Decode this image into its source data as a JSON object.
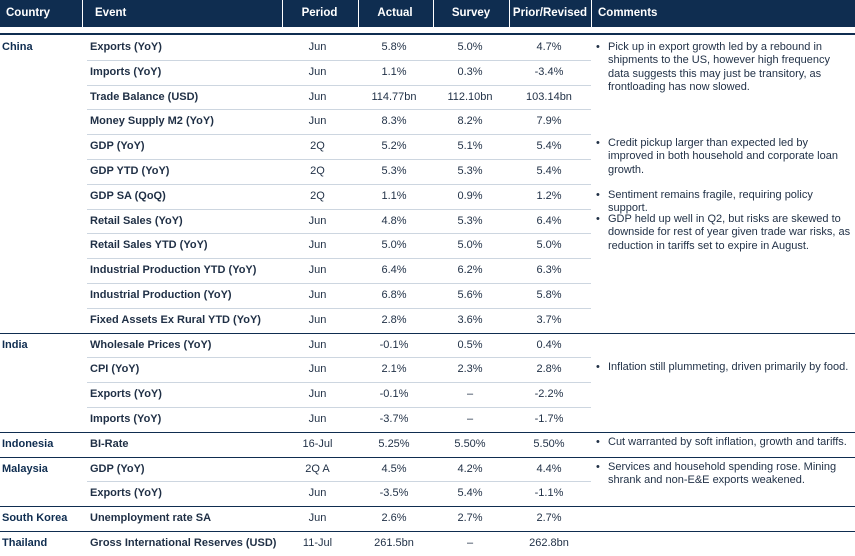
{
  "headers": {
    "country": "Country",
    "event": "Event",
    "period": "Period",
    "actual": "Actual",
    "survey": "Survey",
    "prior": "Prior/Revised",
    "comments": "Comments"
  },
  "bullet": "•",
  "rows": [
    {
      "country": "China",
      "event": "Exports (YoY)",
      "period": "Jun",
      "actual": "5.8%",
      "survey": "5.0%",
      "prior": "4.7%"
    },
    {
      "country": "",
      "event": "Imports (YoY)",
      "period": "Jun",
      "actual": "1.1%",
      "survey": "0.3%",
      "prior": "-3.4%"
    },
    {
      "country": "",
      "event": "Trade Balance (USD)",
      "period": "Jun",
      "actual": "114.77bn",
      "survey": "112.10bn",
      "prior": "103.14bn"
    },
    {
      "country": "",
      "event": "Money Supply M2 (YoY)",
      "period": "Jun",
      "actual": "8.3%",
      "survey": "8.2%",
      "prior": "7.9%"
    },
    {
      "country": "",
      "event": "GDP (YoY)",
      "period": "2Q",
      "actual": "5.2%",
      "survey": "5.1%",
      "prior": "5.4%"
    },
    {
      "country": "",
      "event": "GDP YTD (YoY)",
      "period": "2Q",
      "actual": "5.3%",
      "survey": "5.3%",
      "prior": "5.4%"
    },
    {
      "country": "",
      "event": "GDP SA (QoQ)",
      "period": "2Q",
      "actual": "1.1%",
      "survey": "0.9%",
      "prior": "1.2%"
    },
    {
      "country": "",
      "event": "Retail Sales (YoY)",
      "period": "Jun",
      "actual": "4.8%",
      "survey": "5.3%",
      "prior": "6.4%"
    },
    {
      "country": "",
      "event": "Retail Sales YTD (YoY)",
      "period": "Jun",
      "actual": "5.0%",
      "survey": "5.0%",
      "prior": "5.0%"
    },
    {
      "country": "",
      "event": "Industrial Production YTD (YoY)",
      "period": "Jun",
      "actual": "6.4%",
      "survey": "6.2%",
      "prior": "6.3%"
    },
    {
      "country": "",
      "event": "Industrial Production (YoY)",
      "period": "Jun",
      "actual": "6.8%",
      "survey": "5.6%",
      "prior": "5.8%"
    },
    {
      "country": "",
      "event": "Fixed Assets Ex Rural YTD (YoY)",
      "period": "Jun",
      "actual": "2.8%",
      "survey": "3.6%",
      "prior": "3.7%"
    },
    {
      "country": "India",
      "event": "Wholesale Prices (YoY)",
      "period": "Jun",
      "actual": "-0.1%",
      "survey": "0.5%",
      "prior": "0.4%"
    },
    {
      "country": "",
      "event": "CPI (YoY)",
      "period": "Jun",
      "actual": "2.1%",
      "survey": "2.3%",
      "prior": "2.8%"
    },
    {
      "country": "",
      "event": "Exports (YoY)",
      "period": "Jun",
      "actual": "-0.1%",
      "survey": "–",
      "prior": "-2.2%"
    },
    {
      "country": "",
      "event": "Imports (YoY)",
      "period": "Jun",
      "actual": "-3.7%",
      "survey": "–",
      "prior": "-1.7%"
    },
    {
      "country": "Indonesia",
      "event": "BI-Rate",
      "period": "16-Jul",
      "actual": "5.25%",
      "survey": "5.50%",
      "prior": "5.50%"
    },
    {
      "country": "Malaysia",
      "event": "GDP (YoY)",
      "period": "2Q A",
      "actual": "4.5%",
      "survey": "4.2%",
      "prior": "4.4%"
    },
    {
      "country": "",
      "event": "Exports (YoY)",
      "period": "Jun",
      "actual": "-3.5%",
      "survey": "5.4%",
      "prior": "-1.1%"
    },
    {
      "country": "South Korea",
      "event": "Unemployment rate SA",
      "period": "Jun",
      "actual": "2.6%",
      "survey": "2.7%",
      "prior": "2.7%"
    },
    {
      "country": "Thailand",
      "event": "Gross International Reserves (USD)",
      "period": "11-Jul",
      "actual": "261.5bn",
      "survey": "–",
      "prior": "262.8bn"
    }
  ],
  "comments": [
    {
      "text": "Pick up in export growth led by a rebound in shipments to the US, however high frequency data suggests this may just be transitory, as frontloading has now slowed."
    },
    {
      "text": "Credit pickup larger than expected led by improved in both household and corporate loan growth."
    },
    {
      "text": "Sentiment remains fragile, requiring policy support."
    },
    {
      "text": "GDP held up well in Q2, but risks are skewed to downside for rest of year given trade war risks, as reduction in tariffs set to expire in August."
    },
    {
      "text": "Inflation still plummeting, driven primarily by food."
    },
    {
      "text": "Cut warranted by soft inflation, growth and tariffs."
    },
    {
      "text": "Services and household spending rose. Mining shrank and non-E&E exports weakened."
    }
  ]
}
